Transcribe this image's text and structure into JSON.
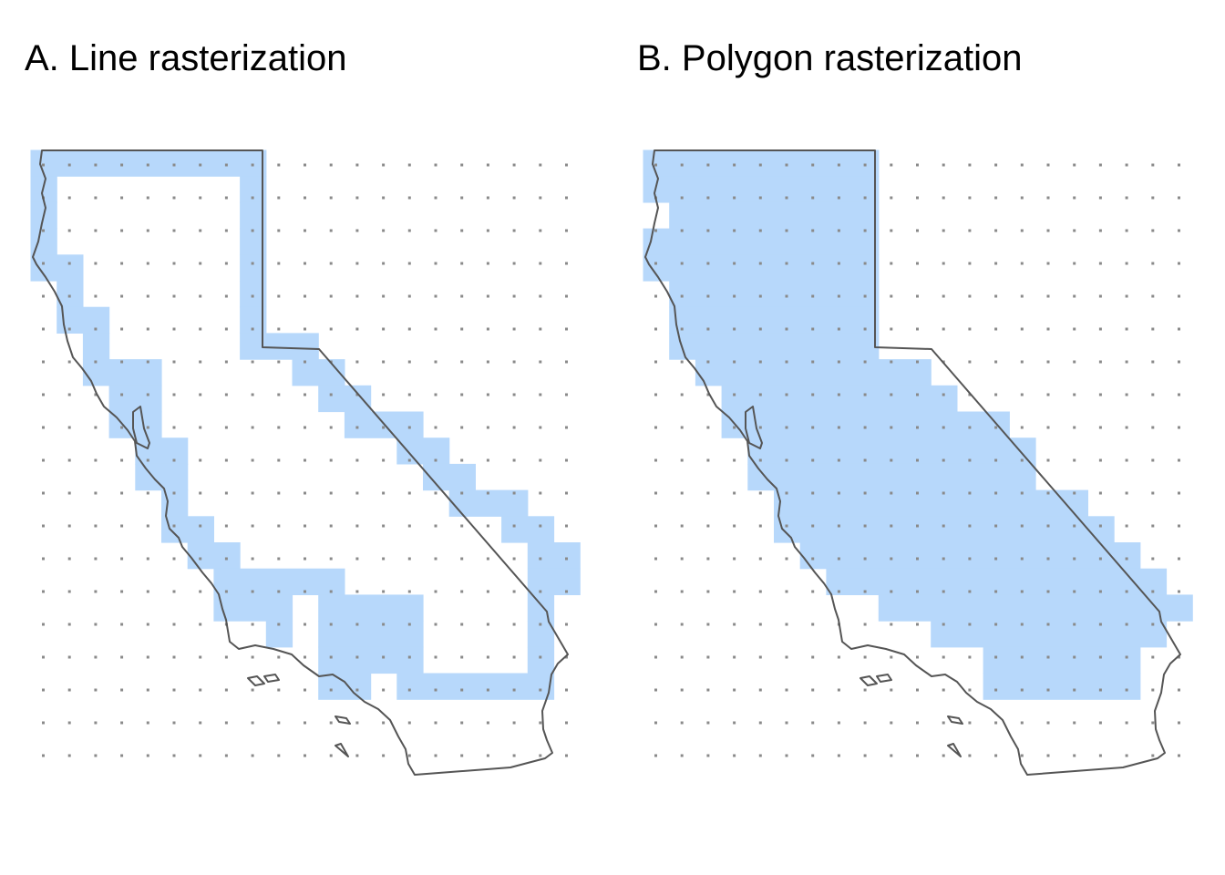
{
  "panels": [
    {
      "id": "line",
      "title": "A. Line rasterization"
    },
    {
      "id": "polygon",
      "title": "B. Polygon rasterization"
    }
  ],
  "colors": {
    "cell_fill": "#b7d8fb",
    "outline": "#555555",
    "grid_dot": "#8a8a8a",
    "background": "#ffffff"
  },
  "grid": {
    "columns": 21,
    "rows": 24
  },
  "line_raster": {
    "row_runs": [
      [
        [
          0,
          8
        ]
      ],
      [
        [
          0,
          0
        ],
        [
          8,
          8
        ]
      ],
      [
        [
          0,
          0
        ],
        [
          8,
          8
        ]
      ],
      [
        [
          0,
          0
        ],
        [
          8,
          8
        ]
      ],
      [
        [
          0,
          1
        ],
        [
          8,
          8
        ]
      ],
      [
        [
          1,
          1
        ],
        [
          8,
          8
        ]
      ],
      [
        [
          1,
          2
        ],
        [
          8,
          8
        ]
      ],
      [
        [
          2,
          2
        ],
        [
          8,
          10
        ]
      ],
      [
        [
          2,
          4
        ],
        [
          10,
          11
        ]
      ],
      [
        [
          3,
          4
        ],
        [
          11,
          12
        ]
      ],
      [
        [
          3,
          4
        ],
        [
          12,
          14
        ]
      ],
      [
        [
          4,
          5
        ],
        [
          14,
          15
        ]
      ],
      [
        [
          4,
          5
        ],
        [
          15,
          16
        ]
      ],
      [
        [
          5,
          5
        ],
        [
          16,
          18
        ]
      ],
      [
        [
          5,
          6
        ],
        [
          18,
          19
        ]
      ],
      [
        [
          6,
          7
        ],
        [
          19,
          20
        ]
      ],
      [
        [
          7,
          11
        ],
        [
          19,
          20
        ]
      ],
      [
        [
          7,
          9
        ],
        [
          11,
          14
        ],
        [
          19,
          19
        ]
      ],
      [
        [
          9,
          9
        ],
        [
          11,
          14
        ],
        [
          19,
          19
        ]
      ],
      [
        [
          11,
          14
        ],
        [
          19,
          19
        ]
      ],
      [
        [
          11,
          12
        ],
        [
          14,
          19
        ]
      ]
    ]
  },
  "polygon_raster": {
    "row_runs": [
      [
        [
          0,
          8
        ]
      ],
      [
        [
          0,
          8
        ]
      ],
      [
        [
          1,
          8
        ]
      ],
      [
        [
          0,
          8
        ]
      ],
      [
        [
          0,
          8
        ]
      ],
      [
        [
          1,
          8
        ]
      ],
      [
        [
          1,
          8
        ]
      ],
      [
        [
          1,
          8
        ]
      ],
      [
        [
          2,
          10
        ]
      ],
      [
        [
          3,
          11
        ]
      ],
      [
        [
          3,
          13
        ]
      ],
      [
        [
          4,
          14
        ]
      ],
      [
        [
          4,
          14
        ]
      ],
      [
        [
          5,
          16
        ]
      ],
      [
        [
          5,
          17
        ]
      ],
      [
        [
          6,
          18
        ]
      ],
      [
        [
          7,
          19
        ]
      ],
      [
        [
          9,
          20
        ]
      ],
      [
        [
          11,
          19
        ]
      ],
      [
        [
          13,
          18
        ]
      ],
      [
        [
          13,
          18
        ]
      ]
    ]
  }
}
